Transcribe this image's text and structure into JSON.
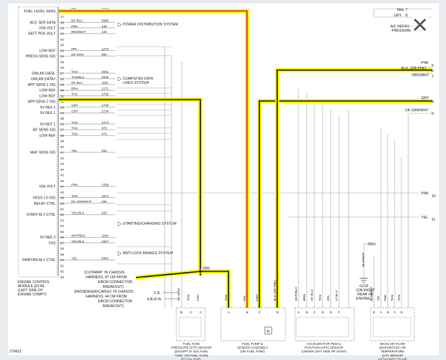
{
  "ecm_pins": [
    {
      "pin": "16",
      "label": "FUEL LEVEL SENS",
      "wire": "PPL",
      "circuit": "1589"
    },
    {
      "pin": "17",
      "label": "",
      "wire": "",
      "circuit": ""
    },
    {
      "pin": "18",
      "label": "ACC SER DATA",
      "wire": "DK BLU",
      "circuit": "5985"
    },
    {
      "pin": "19",
      "label": "IGN VOLT",
      "wire": "PNK",
      "circuit": "439"
    },
    {
      "pin": "20",
      "label": "BATT POS VOLT",
      "wire": "RED/WHT",
      "circuit": "440"
    },
    {
      "pin": "21",
      "label": "",
      "wire": "",
      "circuit": ""
    },
    {
      "pin": "22",
      "label": "",
      "wire": "",
      "circuit": ""
    },
    {
      "pin": "23",
      "label": "LOW REF",
      "wire": "PPL",
      "circuit": "1272"
    },
    {
      "pin": "24",
      "label": "PRESS SENS SIG",
      "wire": "DK GRN",
      "circuit": "890"
    },
    {
      "pin": "25",
      "label": "",
      "wire": "",
      "circuit": ""
    },
    {
      "pin": "26",
      "label": "",
      "wire": "",
      "circuit": ""
    },
    {
      "pin": "27",
      "label": "GMLAN DATA-",
      "wire": "TAN",
      "circuit": "2501"
    },
    {
      "pin": "28",
      "label": "GMLAN DATA+",
      "wire": "TAN/BLK",
      "circuit": "2500"
    },
    {
      "pin": "29",
      "label": "APP SENS 1 SIG",
      "wire": "DK BLU",
      "circuit": "1161"
    },
    {
      "pin": "30",
      "label": "LOW REF",
      "wire": "BRN",
      "circuit": "1271"
    },
    {
      "pin": "31",
      "label": "LOW REF",
      "wire": "TAN",
      "circuit": "2759"
    },
    {
      "pin": "32",
      "label": "APP SENS 2 SIG",
      "wire": "LT BLU",
      "circuit": "1162"
    },
    {
      "pin": "33",
      "label": "5V REF 1",
      "wire": "GRY",
      "circuit": "2709"
    },
    {
      "pin": "34",
      "label": "5V REF 1",
      "wire": "GRY",
      "circuit": "2700"
    },
    {
      "pin": "35",
      "label": "",
      "wire": "",
      "circuit": ""
    },
    {
      "pin": "36",
      "label": "5V REF 1",
      "wire": "TAN",
      "circuit": "1274"
    },
    {
      "pin": "37",
      "label": "IAT SENS SIG",
      "wire": "TAN",
      "circuit": "472"
    },
    {
      "pin": "38",
      "label": "LOW REF",
      "wire": "TAN",
      "circuit": "470"
    },
    {
      "pin": "39",
      "label": "",
      "wire": "",
      "circuit": ""
    },
    {
      "pin": "40",
      "label": "",
      "wire": "",
      "circuit": ""
    },
    {
      "pin": "41",
      "label": "MAF SENS SIG",
      "wire": "YEL",
      "circuit": "492"
    },
    {
      "pin": "42",
      "label": "",
      "wire": "",
      "circuit": ""
    },
    {
      "pin": "43",
      "label": "",
      "wire": "",
      "circuit": ""
    },
    {
      "pin": "44",
      "label": "",
      "wire": "",
      "circuit": ""
    },
    {
      "pin": "45",
      "label": "",
      "wire": "",
      "circuit": ""
    },
    {
      "pin": "46",
      "label": "",
      "wire": "",
      "circuit": ""
    },
    {
      "pin": "47",
      "label": "IGN VOLT",
      "wire": "PNK",
      "circuit": "1339"
    },
    {
      "pin": "48",
      "label": "",
      "wire": "",
      "circuit": ""
    },
    {
      "pin": "49",
      "label": "HO2S LO SIG",
      "wire": "TAN",
      "circuit": "1671"
    },
    {
      "pin": "50",
      "label": "RELAY CTRL",
      "wire": "DK GRN/WHT",
      "circuit": "465"
    },
    {
      "pin": "51",
      "label": "",
      "wire": "",
      "circuit": ""
    },
    {
      "pin": "52",
      "label": "START RLY CTRL",
      "wire": "YEL/BLK",
      "circuit": "625"
    },
    {
      "pin": "53",
      "label": "",
      "wire": "",
      "circuit": ""
    },
    {
      "pin": "54",
      "label": "",
      "wire": "",
      "circuit": ""
    },
    {
      "pin": "55",
      "label": "",
      "wire": "",
      "circuit": ""
    },
    {
      "pin": "56",
      "label": "5V REF 2",
      "wire": "WHT/BLK",
      "circuit": "1164"
    },
    {
      "pin": "57",
      "label": "VSS",
      "wire": "YEL/BLK",
      "circuit": "1827"
    },
    {
      "pin": "58",
      "label": "",
      "wire": "",
      "circuit": ""
    },
    {
      "pin": "59",
      "label": "",
      "wire": "",
      "circuit": ""
    },
    {
      "pin": "60",
      "label": "PWRTRN RLY CTRL",
      "wire": "YEL",
      "circuit": "5981"
    },
    {
      "pin": "61",
      "label": "",
      "wire": "",
      "circuit": ""
    },
    {
      "pin": "62",
      "label": "",
      "wire": "",
      "circuit": ""
    },
    {
      "pin": "63",
      "label": "",
      "wire": "",
      "circuit": ""
    }
  ],
  "system_refs": {
    "power": "POWER DISTRIBUTION SYSTEM",
    "data_1": "COMPUTER DATA",
    "data_2": "LINES SYSTEM",
    "starting": "STARTING/CHARGING SYSTEM",
    "abs": "ANTI-LOCK BRAKES SYSTEM"
  },
  "ecm_caption": {
    "l1": "ENGINE CONTROL",
    "l2": "MODULE (ECM)",
    "l3": "(LEFT SIDE OF",
    "l4": "ENGINE COMPT)"
  },
  "right_labels": {
    "tan1": "TAN",
    "tan1_pin": "7",
    "gry_top": "GRY",
    "gry_top_pin": "8",
    "ac_1": "A/C REFRIGERANT",
    "ac_2": "PRESSURE SENSOR",
    "pnk5": "PNK",
    "pin5": "5",
    "blk_pnk": "BLK, (OR PNK)",
    "pin6": "6",
    "org_wht": "ORG/WHT",
    "pin7": "7",
    "gry8": "GRY",
    "pin8": "8",
    "dk_grn_wht": "DK GRN/WHT",
    "pin9": "9",
    "pnk10": "PNK",
    "pin10": "10",
    "yel11": "YEL",
    "pin11": "11"
  },
  "splice": {
    "s301": "J301",
    "s301b": "J301"
  },
  "notes": {
    "cut_1": "(CUTAWAY: IN CHASSIS",
    "cut_2": "HARNESS, 87 CM FROM",
    "cut_3": "EBCM CONNECTOR",
    "cut_4": "BREAKOUT)",
    "pass_1": "(PASSENGER/CARGO: IN CHASSIS",
    "pass_2": "HARNESS, 44 CM FROM",
    "pass_3": "EBCM CONNECTOR",
    "pass_4": "BREAKOUT)"
  },
  "engine_variants": {
    "v1": "5.3L",
    "v2": "4.8L/6.0L"
  },
  "ftp_wires": [
    "DK GRN",
    "TAN",
    "GRY"
  ],
  "ftp_pins": [
    "B",
    "C",
    "A"
  ],
  "ftp_caption": [
    "FUEL TANK",
    "PRESSURE (FTP) SENSOR",
    "(EXCEPT 57 GAL FUEL",
    "TANK: ON FUEL TANK)",
    "(57 GAL FUEL",
    "TANK: AT FUEL TANK)"
  ],
  "pump_wires": [
    "TAN",
    "PPL",
    "GRY",
    "BLK (OR PNK)"
  ],
  "pump_pins": [
    "A",
    "B",
    "C",
    "D"
  ],
  "pump_motor": "M",
  "pump_caption": [
    "FUEL PUMP &",
    "SENDER ASSEMBLY",
    "(ON FUEL TANK)"
  ],
  "app_wires": [
    "WHT/BLK",
    "BRN",
    "DK BLU",
    "TAN",
    "PPL",
    "LT BLU"
  ],
  "app_pins": [
    "A",
    "B",
    "C",
    "D",
    "E",
    "F"
  ],
  "app_caption": [
    "ACCELERATOR PEDAL",
    "POSITION (APP) SENSOR",
    "(UNDER LEFT SIDE OF DASH)"
  ],
  "maf_wires": [
    "BLK/WHT",
    "YEL",
    "PNK",
    "TAN",
    "TAN"
  ],
  "maf_pins": [
    "E",
    "A",
    "B",
    "C",
    "D"
  ],
  "maf_caption": [
    "MASS AIR FLOW",
    "(MAF)/INTAKE AIR",
    "TEMPERATURE",
    "(IAT) SENSOR",
    "(ATTACHED TO AIR",
    "INTAKE DUCT)"
  ],
  "ground": {
    "wire": "BLK/WHT",
    "circuit": "2501",
    "name": "G103",
    "loc_1": "(ON RIGHT",
    "loc_2": "REAR OF",
    "loc_3": "ENGINE)"
  },
  "figure_id": "279622",
  "colors": {
    "highlight": "#f2ef00",
    "red_wire": "#e0202a",
    "wire": "#111111",
    "ecm_border": "#9aa0a6"
  },
  "icons": {
    "close": "close-icon"
  }
}
